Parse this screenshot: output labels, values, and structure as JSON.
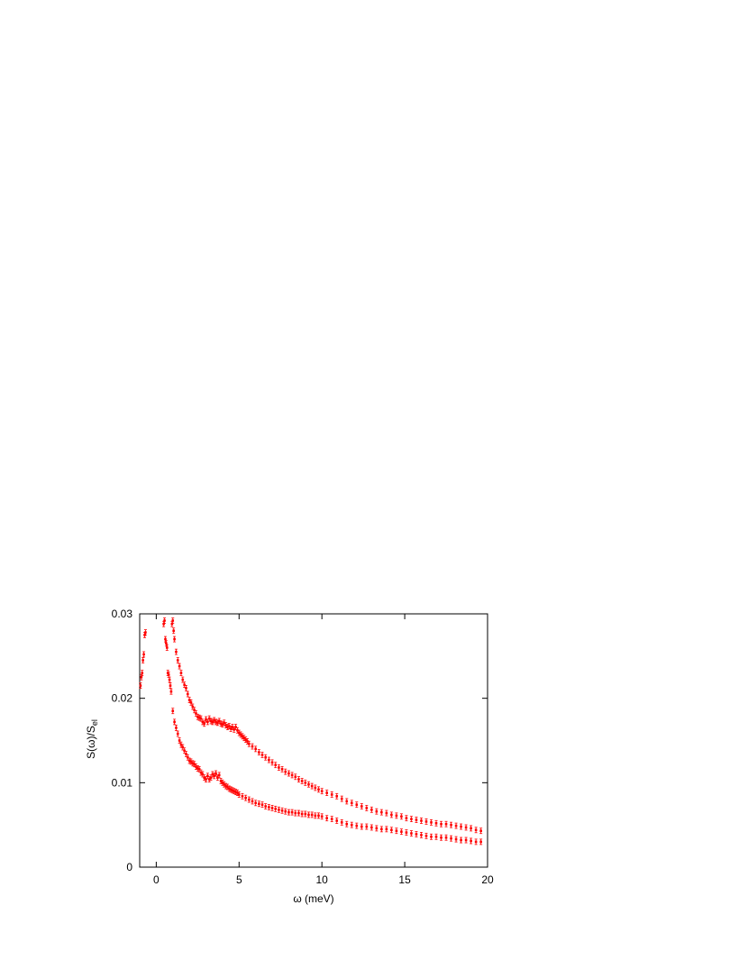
{
  "chart_data": {
    "type": "scatter",
    "title": "",
    "xlabel": "ω (meV)",
    "ylabel_main": "S(ω)/S",
    "ylabel_sub": "el",
    "xlim": [
      -1,
      20
    ],
    "ylim": [
      0,
      0.03
    ],
    "xticks": [
      0,
      5,
      10,
      15,
      20
    ],
    "xtick_labels": [
      "0",
      "5",
      "10",
      "15",
      "20"
    ],
    "yticks": [
      0,
      0.01,
      0.02,
      0.03
    ],
    "ytick_labels": [
      "0",
      "0.01",
      "0.02",
      "0.03"
    ],
    "grid": false,
    "legend": "none",
    "series": [
      {
        "color": "#ff0000",
        "x": [
          -0.95,
          -0.9,
          -0.85,
          -0.8,
          -0.75,
          -0.7,
          -0.65,
          0.95,
          1.0,
          1.05,
          1.1,
          1.2,
          1.3,
          1.4,
          1.5,
          1.6,
          1.7,
          1.8,
          1.9,
          2.0,
          2.1,
          2.2,
          2.3,
          2.4,
          2.5,
          2.6,
          2.7,
          2.8,
          2.9,
          3.0,
          3.1,
          3.2,
          3.3,
          3.4,
          3.5,
          3.6,
          3.7,
          3.8,
          3.9,
          4.0,
          4.1,
          4.2,
          4.3,
          4.4,
          4.5,
          4.6,
          4.7,
          4.8,
          4.9,
          5.0,
          5.1,
          5.2,
          5.3,
          5.4,
          5.5,
          5.6,
          5.8,
          6.0,
          6.2,
          6.4,
          6.6,
          6.8,
          7.0,
          7.2,
          7.4,
          7.6,
          7.8,
          8.0,
          8.2,
          8.4,
          8.6,
          8.8,
          9.0,
          9.2,
          9.4,
          9.6,
          9.8,
          10.0,
          10.3,
          10.6,
          10.9,
          11.2,
          11.5,
          11.8,
          12.1,
          12.4,
          12.7,
          13.0,
          13.3,
          13.6,
          13.9,
          14.2,
          14.5,
          14.8,
          15.1,
          15.4,
          15.7,
          16.0,
          16.3,
          16.6,
          16.9,
          17.2,
          17.5,
          17.8,
          18.1,
          18.4,
          18.7,
          19.0,
          19.3,
          19.6
        ],
        "y": [
          0.0215,
          0.0225,
          0.023,
          0.0245,
          0.0252,
          0.0275,
          0.0278,
          0.0288,
          0.0292,
          0.028,
          0.027,
          0.0255,
          0.0245,
          0.0238,
          0.023,
          0.0222,
          0.0216,
          0.0212,
          0.0205,
          0.0198,
          0.0195,
          0.019,
          0.0186,
          0.0182,
          0.0178,
          0.0177,
          0.0176,
          0.0172,
          0.017,
          0.0175,
          0.0172,
          0.0176,
          0.0173,
          0.0172,
          0.0174,
          0.0172,
          0.0171,
          0.0173,
          0.017,
          0.0169,
          0.0171,
          0.0168,
          0.0166,
          0.0167,
          0.0164,
          0.0166,
          0.0163,
          0.0166,
          0.0162,
          0.0159,
          0.0157,
          0.0155,
          0.0153,
          0.0151,
          0.0149,
          0.0146,
          0.0143,
          0.014,
          0.0136,
          0.0133,
          0.013,
          0.0127,
          0.0124,
          0.0121,
          0.0118,
          0.0116,
          0.0113,
          0.0111,
          0.0109,
          0.0107,
          0.0104,
          0.0102,
          0.01,
          0.0098,
          0.0096,
          0.0094,
          0.0092,
          0.009,
          0.0088,
          0.0086,
          0.0084,
          0.0081,
          0.0078,
          0.0076,
          0.0074,
          0.0072,
          0.007,
          0.0068,
          0.0066,
          0.0065,
          0.0064,
          0.0062,
          0.0061,
          0.006,
          0.0058,
          0.0057,
          0.0056,
          0.0055,
          0.0054,
          0.0053,
          0.0052,
          0.0051,
          0.0051,
          0.005,
          0.0049,
          0.0048,
          0.0047,
          0.0046,
          0.0044,
          0.0043
        ]
      },
      {
        "color": "#ff0000",
        "x": [
          0.45,
          0.5,
          0.55,
          0.6,
          0.65,
          0.7,
          0.75,
          0.8,
          0.85,
          0.9,
          1.0,
          1.1,
          1.2,
          1.3,
          1.4,
          1.5,
          1.6,
          1.7,
          1.8,
          1.9,
          2.0,
          2.1,
          2.2,
          2.3,
          2.4,
          2.5,
          2.6,
          2.7,
          2.8,
          2.9,
          3.0,
          3.1,
          3.2,
          3.3,
          3.4,
          3.5,
          3.6,
          3.7,
          3.8,
          3.9,
          4.0,
          4.1,
          4.2,
          4.3,
          4.4,
          4.5,
          4.6,
          4.7,
          4.8,
          4.9,
          5.0,
          5.2,
          5.4,
          5.6,
          5.8,
          6.0,
          6.2,
          6.4,
          6.6,
          6.8,
          7.0,
          7.2,
          7.4,
          7.6,
          7.8,
          8.0,
          8.2,
          8.4,
          8.6,
          8.8,
          9.0,
          9.2,
          9.4,
          9.6,
          9.8,
          10.0,
          10.3,
          10.6,
          10.9,
          11.2,
          11.5,
          11.8,
          12.1,
          12.4,
          12.7,
          13.0,
          13.3,
          13.6,
          13.9,
          14.2,
          14.5,
          14.8,
          15.1,
          15.4,
          15.7,
          16.0,
          16.3,
          16.6,
          16.9,
          17.2,
          17.5,
          17.8,
          18.1,
          18.4,
          18.7,
          19.0,
          19.3,
          19.6
        ],
        "y": [
          0.0288,
          0.0292,
          0.027,
          0.0265,
          0.026,
          0.023,
          0.0228,
          0.0222,
          0.0215,
          0.0208,
          0.0185,
          0.0172,
          0.0165,
          0.0158,
          0.015,
          0.0145,
          0.0142,
          0.0138,
          0.0134,
          0.013,
          0.0126,
          0.0125,
          0.0123,
          0.0122,
          0.0119,
          0.0117,
          0.0116,
          0.0112,
          0.011,
          0.0106,
          0.0104,
          0.0108,
          0.0104,
          0.0106,
          0.011,
          0.0108,
          0.0111,
          0.0106,
          0.0109,
          0.0102,
          0.01,
          0.0098,
          0.0096,
          0.0095,
          0.0093,
          0.0092,
          0.0091,
          0.009,
          0.0089,
          0.0088,
          0.0086,
          0.0084,
          0.0082,
          0.008,
          0.0078,
          0.0076,
          0.0075,
          0.0074,
          0.0072,
          0.0071,
          0.007,
          0.0069,
          0.0068,
          0.0067,
          0.0066,
          0.0065,
          0.0065,
          0.0064,
          0.0064,
          0.0063,
          0.0063,
          0.0062,
          0.0062,
          0.0061,
          0.0061,
          0.006,
          0.0058,
          0.0057,
          0.0055,
          0.0053,
          0.0051,
          0.005,
          0.0049,
          0.0048,
          0.0048,
          0.0047,
          0.0046,
          0.0045,
          0.0045,
          0.0044,
          0.0043,
          0.0042,
          0.0041,
          0.004,
          0.0039,
          0.0038,
          0.0037,
          0.0036,
          0.0036,
          0.0035,
          0.0035,
          0.0034,
          0.0033,
          0.0032,
          0.0032,
          0.0031,
          0.003,
          0.003
        ]
      }
    ]
  }
}
